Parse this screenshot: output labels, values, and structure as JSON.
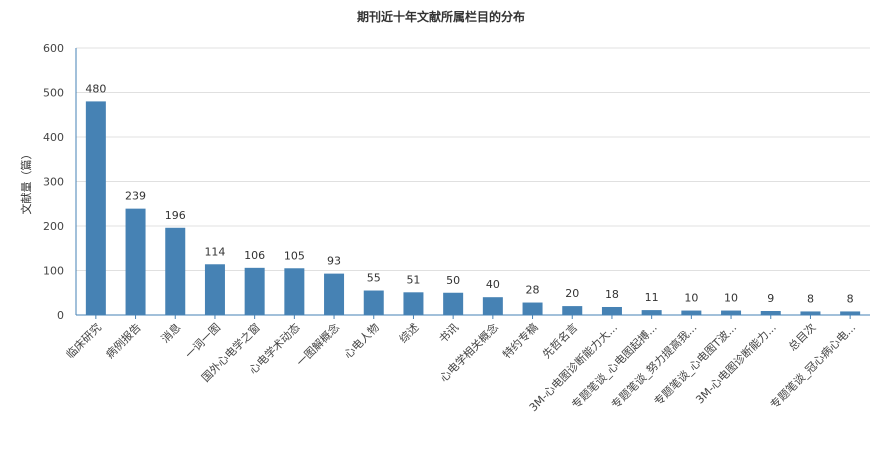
{
  "chart_data": {
    "type": "bar",
    "title": "期刊近十年文献所属栏目的分布",
    "xlabel": "",
    "ylabel": "文献量（篇）",
    "ylim": [
      0,
      600
    ],
    "yticks": [
      0,
      100,
      200,
      300,
      400,
      500,
      600
    ],
    "grid": true,
    "bar_color": "#4682b4",
    "categories": [
      "临床研究",
      "病例报告",
      "消息",
      "一词一图",
      "国外心电学之窗",
      "心电学术动态",
      "一图解概念",
      "心电人物",
      "综述",
      "书讯",
      "心电学相关概念",
      "特约专稿",
      "先哲名言",
      "3M-心电图诊断能力大...",
      "专题笔谈_心电图起搏...",
      "专题笔谈_努力提高我...",
      "专题笔谈_心电图T波...",
      "3M-心电图诊断能力...",
      "总目次",
      "专题笔谈_冠心病心电..."
    ],
    "values": [
      480,
      239,
      196,
      114,
      106,
      105,
      93,
      55,
      51,
      50,
      40,
      28,
      20,
      18,
      11,
      10,
      10,
      9,
      8,
      8
    ]
  }
}
